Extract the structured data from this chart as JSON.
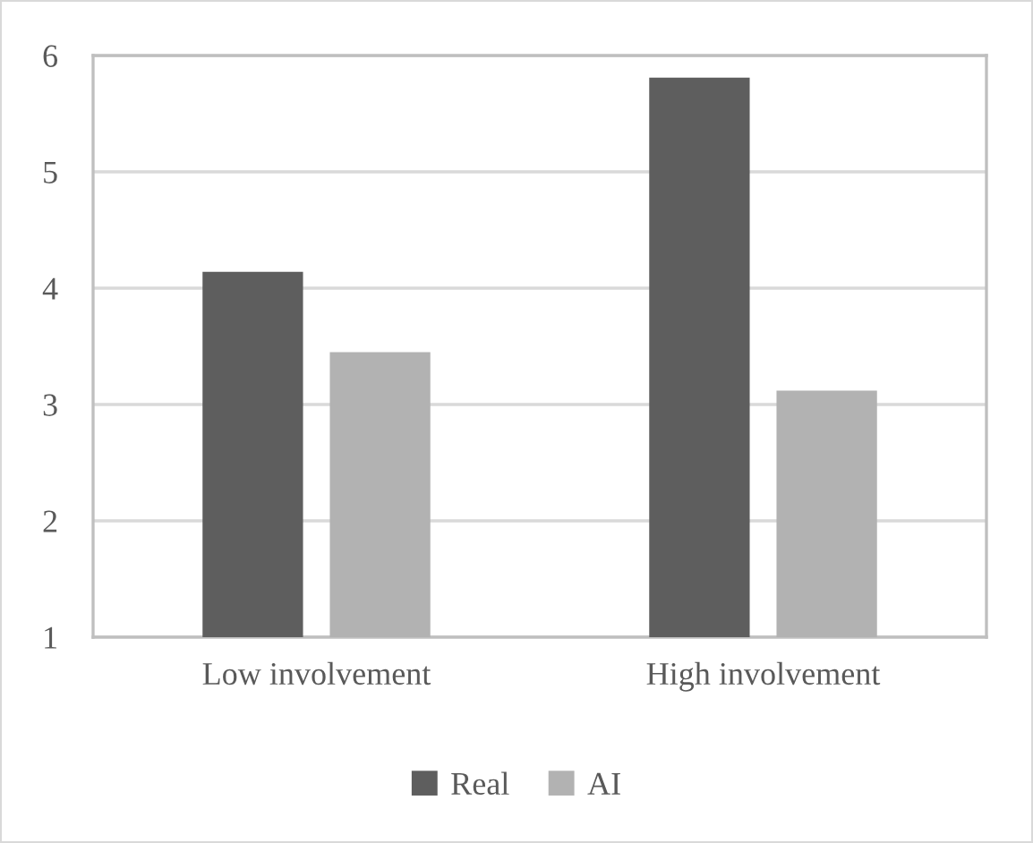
{
  "chart_data": {
    "type": "bar",
    "categories": [
      "Low involvement",
      "High involvement"
    ],
    "series": [
      {
        "name": "Real",
        "color": "#5e5e5e",
        "values": [
          4.14,
          5.81
        ]
      },
      {
        "name": "AI",
        "color": "#b2b2b2",
        "values": [
          3.45,
          3.12
        ]
      }
    ],
    "ylim": [
      1,
      6
    ],
    "yticks": [
      1,
      2,
      3,
      4,
      5,
      6
    ],
    "grid": "y",
    "legend": "bottom"
  }
}
